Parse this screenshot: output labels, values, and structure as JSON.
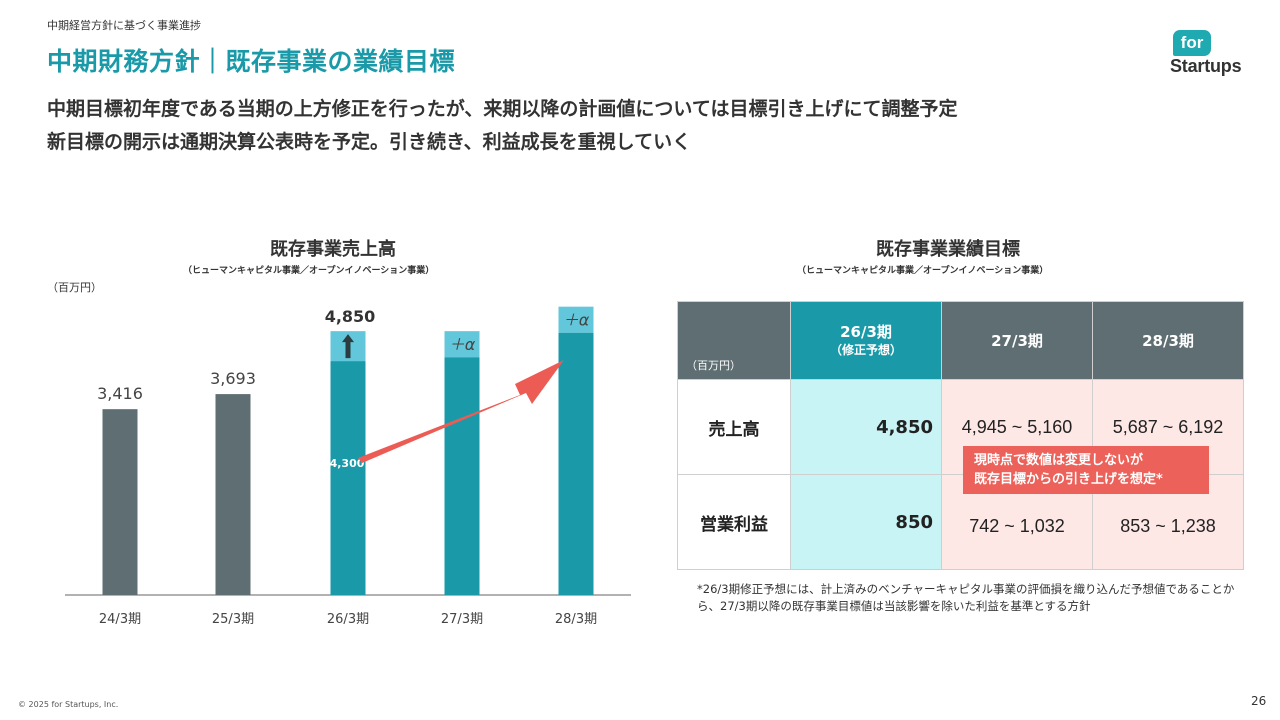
{
  "breadcrumb": "中期経営方針に基づく事業進捗",
  "page_title": "中期財務方針｜既存事業の業績目標",
  "subtitle_lines": [
    "中期目標初年度である当期の上方修正を行ったが、来期以降の計画値については目標引き上げにて調整予定",
    "新目標の開示は通期決算公表時を予定。引き続き、利益成長を重視していく"
  ],
  "logo": {
    "top": "for",
    "bottom": "Startups"
  },
  "chart_data": {
    "type": "bar",
    "title": "既存事業売上高",
    "subtitle": "（ヒューマンキャピタル事業／オープンイノベーション事業）",
    "unit": "（百万円）",
    "categories": [
      "24/3期",
      "25/3期",
      "26/3期",
      "27/3期",
      "28/3期"
    ],
    "values": [
      3416,
      3693,
      4850,
      null,
      null
    ],
    "value_labels": [
      "3,416",
      "3,693",
      "4,850",
      "",
      ""
    ],
    "inner_label": "4,300",
    "inner_value": 4300,
    "plus_alpha": "＋α",
    "up_arrow_icon": "up-arrow-icon",
    "colors": {
      "actual": "#5e6e72",
      "plan": "#1a9aa8",
      "uplift": "#62c7da",
      "arrow": "#ec5c55"
    }
  },
  "table": {
    "title": "既存事業業績目標",
    "subtitle": "（ヒューマンキャピタル事業／オープンイノベーション事業）",
    "unit": "（百万円）",
    "headers": [
      {
        "main": "26/3期",
        "sub": "（修正予想）"
      },
      {
        "main": "27/3期"
      },
      {
        "main": "28/3期"
      }
    ],
    "rows": [
      {
        "label": "売上高",
        "current": "4,850",
        "y27": "4,945 ~ 5,160",
        "y28": "5,687 ~ 6,192"
      },
      {
        "label": "営業利益",
        "current": "850",
        "y27": "742 ~ 1,032",
        "y28": "853 ~ 1,238"
      }
    ],
    "note_lines": [
      "現時点で数値は変更しないが",
      "既存目標からの引き上げを想定*"
    ]
  },
  "footnote": "*26/3期修正予想には、計上済みのベンチャーキャピタル事業の評価損を織り込んだ予想値であることから、27/3期以降の既存事業目標値は当該影響を除いた利益を基準とする方針",
  "copyright": "© 2025 for Startups, Inc.",
  "page_number": "26"
}
